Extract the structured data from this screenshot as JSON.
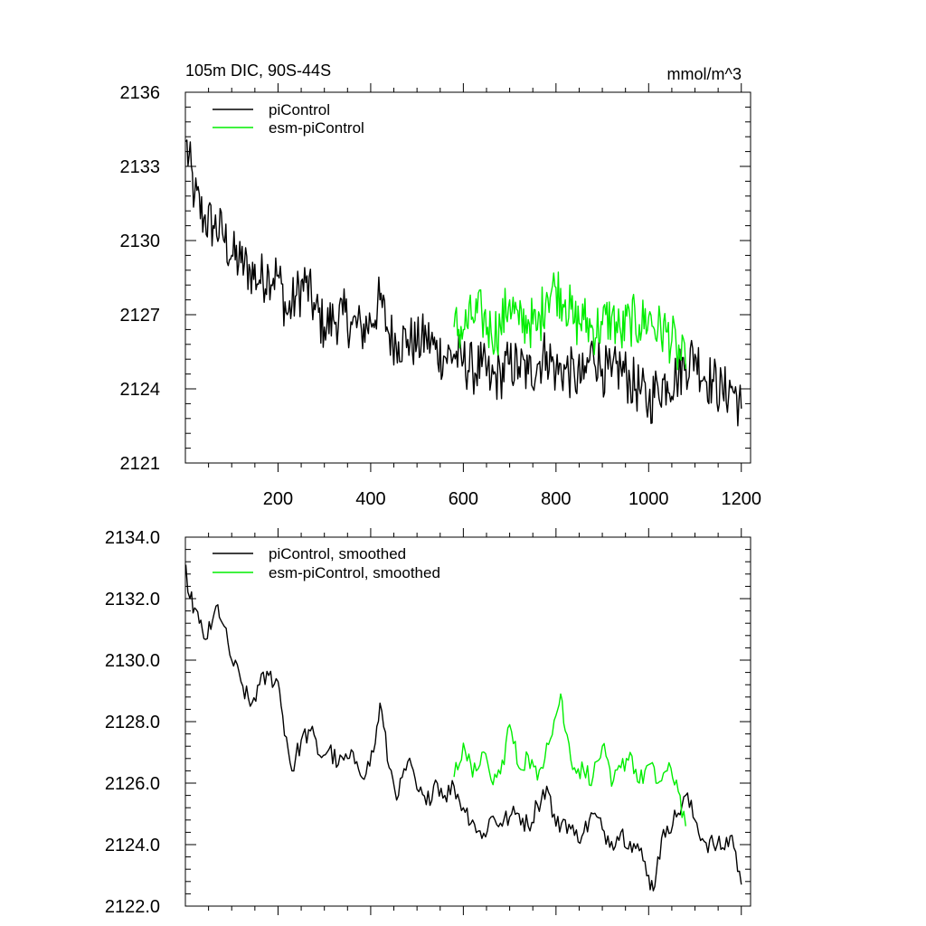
{
  "chart_data": [
    {
      "type": "line",
      "title_left": "105m DIC, 90S-44S",
      "title_right": "mmol/m^3",
      "xlim": [
        0,
        1220
      ],
      "ylim": [
        2121,
        2136
      ],
      "x_ticks": [
        200,
        400,
        600,
        800,
        1000,
        1200
      ],
      "x_tick_labels": [
        "200",
        "400",
        "600",
        "800",
        "1000",
        "1200"
      ],
      "y_ticks": [
        2121,
        2124,
        2127,
        2130,
        2133,
        2136
      ],
      "y_tick_labels": [
        "2121",
        "2124",
        "2127",
        "2130",
        "2133",
        "2136"
      ],
      "legend": [
        "piControl",
        "esm-piControl"
      ],
      "series": [
        {
          "name": "piControl",
          "color": "#000000",
          "x": [
            1,
            20,
            40,
            60,
            80,
            100,
            120,
            140,
            160,
            180,
            200,
            220,
            240,
            260,
            280,
            300,
            320,
            340,
            360,
            380,
            400,
            420,
            440,
            460,
            480,
            500,
            520,
            540,
            560,
            580,
            600,
            620,
            640,
            660,
            680,
            700,
            720,
            740,
            760,
            780,
            800,
            820,
            840,
            860,
            880,
            900,
            920,
            940,
            960,
            980,
            1000,
            1020,
            1040,
            1060,
            1080,
            1100,
            1120,
            1140,
            1160,
            1180,
            1200
          ],
          "values": [
            2134.0,
            2131.8,
            2130.9,
            2130.6,
            2130.3,
            2129.4,
            2129.1,
            2128.8,
            2128.4,
            2128.7,
            2128.6,
            2127.0,
            2127.8,
            2128.3,
            2127.2,
            2126.5,
            2126.8,
            2127.0,
            2126.6,
            2126.4,
            2126.7,
            2127.6,
            2126.2,
            2125.9,
            2126.0,
            2125.8,
            2126.1,
            2125.6,
            2125.3,
            2125.4,
            2125.1,
            2124.8,
            2124.9,
            2124.3,
            2124.6,
            2125.0,
            2124.9,
            2124.6,
            2125.0,
            2125.5,
            2124.7,
            2124.8,
            2124.5,
            2124.4,
            2125.6,
            2124.8,
            2124.5,
            2124.9,
            2124.3,
            2124.0,
            2123.4,
            2124.1,
            2124.3,
            2124.5,
            2125.0,
            2125.4,
            2124.5,
            2124.3,
            2123.8,
            2124.1,
            2123.2
          ]
        },
        {
          "name": "esm-piControl",
          "color": "#00ee00",
          "x": [
            580,
            600,
            620,
            640,
            660,
            680,
            700,
            720,
            740,
            760,
            780,
            800,
            820,
            840,
            860,
            880,
            900,
            920,
            940,
            960,
            980,
            1000,
            1020,
            1040,
            1060,
            1080
          ],
          "values": [
            2126.5,
            2126.4,
            2126.9,
            2127.0,
            2126.3,
            2126.5,
            2127.6,
            2126.6,
            2126.8,
            2126.4,
            2127.9,
            2128.1,
            2127.6,
            2126.7,
            2126.8,
            2126.4,
            2126.6,
            2126.9,
            2126.2,
            2126.8,
            2126.6,
            2126.9,
            2126.4,
            2126.3,
            2125.6,
            2124.8
          ]
        }
      ]
    },
    {
      "type": "line",
      "xlim": [
        0,
        1220
      ],
      "ylim": [
        2122.0,
        2134.0
      ],
      "x_ticks": [
        200,
        400,
        600,
        800,
        1000,
        1200
      ],
      "y_ticks": [
        2122.0,
        2124.0,
        2126.0,
        2128.0,
        2130.0,
        2132.0,
        2134.0
      ],
      "y_tick_labels": [
        "2122.0",
        "2124.0",
        "2126.0",
        "2128.0",
        "2130.0",
        "2132.0",
        "2134.0"
      ],
      "legend": [
        "piControl, smoothed",
        "esm-piControl, smoothed"
      ],
      "series": [
        {
          "name": "piControl, smoothed",
          "color": "#000000",
          "x": [
            1,
            10,
            20,
            30,
            40,
            55,
            70,
            80,
            100,
            120,
            140,
            160,
            180,
            200,
            210,
            230,
            250,
            270,
            290,
            310,
            330,
            350,
            370,
            390,
            410,
            420,
            440,
            460,
            480,
            500,
            520,
            540,
            560,
            580,
            600,
            620,
            640,
            660,
            680,
            700,
            720,
            740,
            760,
            780,
            800,
            820,
            840,
            860,
            880,
            900,
            920,
            940,
            960,
            980,
            1000,
            1010,
            1020,
            1040,
            1060,
            1080,
            1100,
            1120,
            1140,
            1160,
            1180,
            1200
          ],
          "values": [
            2133.1,
            2132.0,
            2131.7,
            2131.2,
            2130.7,
            2131.0,
            2131.8,
            2131.2,
            2130.0,
            2129.3,
            2128.5,
            2129.2,
            2129.5,
            2129.3,
            2128.2,
            2126.4,
            2127.4,
            2127.7,
            2126.9,
            2127.1,
            2126.6,
            2126.8,
            2126.7,
            2126.3,
            2127.3,
            2128.6,
            2126.5,
            2125.6,
            2126.7,
            2125.8,
            2125.3,
            2126.1,
            2125.6,
            2125.9,
            2125.2,
            2124.8,
            2124.2,
            2124.9,
            2124.7,
            2124.9,
            2125.0,
            2124.6,
            2125.3,
            2125.9,
            2124.6,
            2124.8,
            2124.3,
            2124.4,
            2125.0,
            2124.5,
            2124.1,
            2124.4,
            2124.1,
            2123.8,
            2123.0,
            2122.5,
            2123.6,
            2124.6,
            2124.9,
            2125.6,
            2124.8,
            2124.1,
            2124.0,
            2123.9,
            2124.3,
            2122.7
          ]
        },
        {
          "name": "esm-piControl, smoothed",
          "color": "#00ee00",
          "x": [
            580,
            600,
            620,
            640,
            660,
            680,
            700,
            720,
            740,
            760,
            780,
            800,
            810,
            820,
            840,
            860,
            880,
            900,
            920,
            940,
            960,
            980,
            1000,
            1020,
            1040,
            1060,
            1080
          ],
          "values": [
            2126.2,
            2127.3,
            2126.2,
            2127.0,
            2126.1,
            2126.3,
            2127.9,
            2126.5,
            2126.9,
            2126.1,
            2127.3,
            2128.2,
            2128.9,
            2127.7,
            2126.5,
            2126.4,
            2126.2,
            2127.2,
            2125.9,
            2126.5,
            2127.0,
            2126.0,
            2126.6,
            2126.0,
            2126.4,
            2126.1,
            2124.6
          ]
        }
      ]
    }
  ]
}
